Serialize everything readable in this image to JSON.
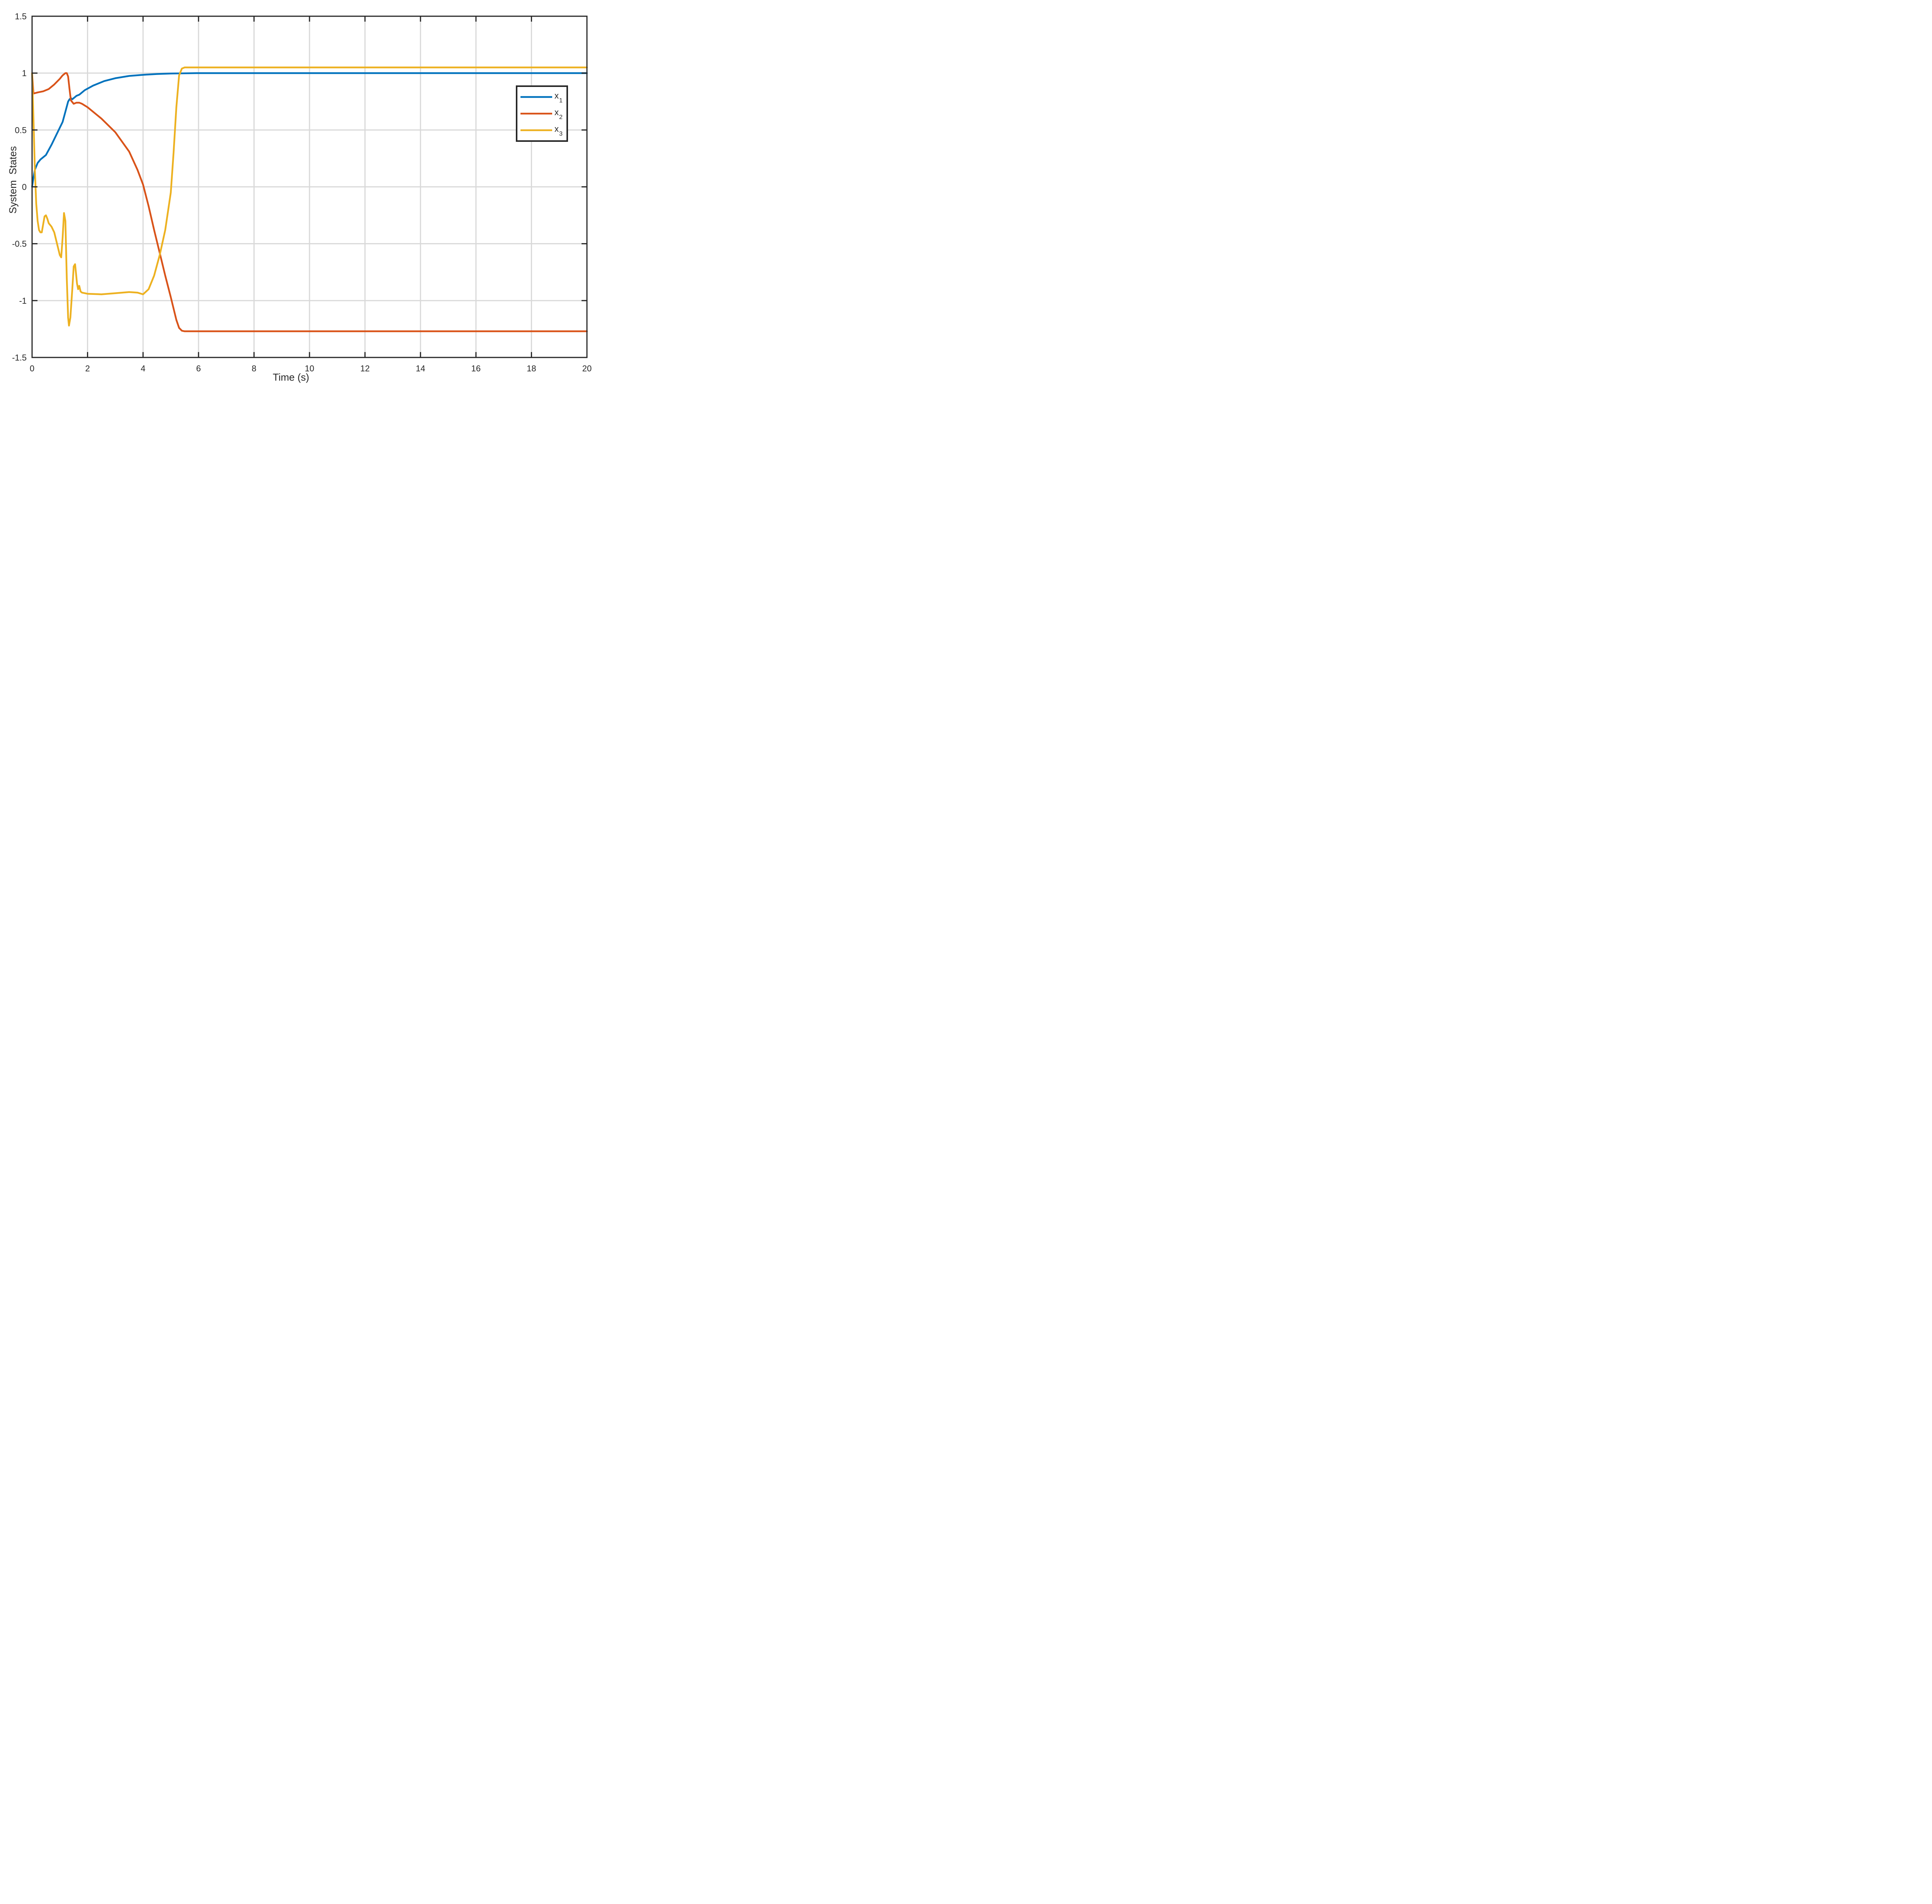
{
  "chart_data": {
    "type": "line",
    "xlabel": "Time (s)",
    "ylabel": "System  States",
    "xlim": [
      0,
      20
    ],
    "ylim": [
      -1.5,
      1.5
    ],
    "xticks": [
      0,
      2,
      4,
      6,
      8,
      10,
      12,
      14,
      16,
      18,
      20
    ],
    "yticks": [
      1.5,
      1,
      0.5,
      0,
      -0.5,
      -1,
      -1.5
    ],
    "xtick_labels": [
      "0",
      "2",
      "4",
      "6",
      "8",
      "10",
      "12",
      "14",
      "16",
      "18",
      "20"
    ],
    "ytick_labels": [
      "1.5",
      "1",
      "0.5",
      "0",
      "-0.5",
      "-1",
      "-1.5"
    ],
    "grid": true,
    "legend_placement": "upper-right",
    "series": [
      {
        "name": "x",
        "subscript": "1",
        "color": "#0072BD",
        "x": [
          0,
          0.05,
          0.1,
          0.2,
          0.3,
          0.4,
          0.5,
          0.7,
          0.9,
          1.1,
          1.2,
          1.3,
          1.35,
          1.4,
          1.45,
          1.5,
          1.55,
          1.6,
          1.7,
          1.9,
          2.2,
          2.6,
          3.0,
          3.5,
          4.0,
          4.5,
          5.0,
          5.5,
          6.0,
          7.0,
          10,
          15,
          20
        ],
        "y": [
          0,
          0.08,
          0.15,
          0.21,
          0.24,
          0.26,
          0.28,
          0.37,
          0.47,
          0.57,
          0.66,
          0.75,
          0.77,
          0.78,
          0.77,
          0.78,
          0.79,
          0.8,
          0.81,
          0.85,
          0.89,
          0.93,
          0.955,
          0.975,
          0.985,
          0.992,
          0.996,
          0.998,
          1.0,
          1.0,
          1.0,
          1.0,
          1.0
        ]
      },
      {
        "name": "x",
        "subscript": "2",
        "color": "#D95319",
        "x": [
          0,
          0.05,
          0.2,
          0.4,
          0.6,
          0.8,
          1.0,
          1.1,
          1.2,
          1.25,
          1.3,
          1.35,
          1.4,
          1.5,
          1.6,
          1.7,
          1.8,
          2.0,
          2.5,
          3.0,
          3.5,
          3.8,
          4.0,
          4.2,
          4.4,
          4.6,
          4.8,
          5.0,
          5.2,
          5.3,
          5.4,
          5.5,
          6.0,
          10,
          15,
          20
        ],
        "y": [
          1.0,
          0.82,
          0.83,
          0.84,
          0.86,
          0.9,
          0.95,
          0.98,
          1.0,
          1.0,
          0.97,
          0.86,
          0.76,
          0.73,
          0.74,
          0.74,
          0.73,
          0.7,
          0.6,
          0.48,
          0.31,
          0.15,
          0.02,
          -0.17,
          -0.38,
          -0.58,
          -0.78,
          -0.97,
          -1.17,
          -1.24,
          -1.265,
          -1.27,
          -1.27,
          -1.27,
          -1.27,
          -1.27
        ]
      },
      {
        "name": "x",
        "subscript": "3",
        "color": "#EDB120",
        "x": [
          0,
          0.05,
          0.1,
          0.15,
          0.2,
          0.25,
          0.3,
          0.35,
          0.4,
          0.45,
          0.5,
          0.55,
          0.6,
          0.7,
          0.8,
          0.9,
          1.0,
          1.05,
          1.1,
          1.15,
          1.2,
          1.25,
          1.3,
          1.33,
          1.38,
          1.45,
          1.5,
          1.55,
          1.58,
          1.62,
          1.66,
          1.7,
          1.75,
          1.8,
          2.0,
          2.5,
          3.0,
          3.5,
          3.8,
          4.0,
          4.2,
          4.4,
          4.6,
          4.8,
          5.0,
          5.1,
          5.2,
          5.3,
          5.4,
          5.5,
          6.0,
          6.5,
          7.0,
          10,
          15,
          20
        ],
        "y": [
          1.0,
          0.6,
          0.15,
          -0.15,
          -0.3,
          -0.38,
          -0.4,
          -0.4,
          -0.33,
          -0.26,
          -0.25,
          -0.28,
          -0.32,
          -0.35,
          -0.4,
          -0.5,
          -0.6,
          -0.62,
          -0.45,
          -0.23,
          -0.3,
          -0.8,
          -1.15,
          -1.22,
          -1.15,
          -0.9,
          -0.7,
          -0.68,
          -0.75,
          -0.85,
          -0.9,
          -0.87,
          -0.92,
          -0.93,
          -0.94,
          -0.945,
          -0.935,
          -0.925,
          -0.93,
          -0.945,
          -0.9,
          -0.78,
          -0.6,
          -0.38,
          -0.05,
          0.3,
          0.7,
          0.98,
          1.04,
          1.05,
          1.05,
          1.05,
          1.05,
          1.05,
          1.05,
          1.05
        ]
      }
    ]
  }
}
